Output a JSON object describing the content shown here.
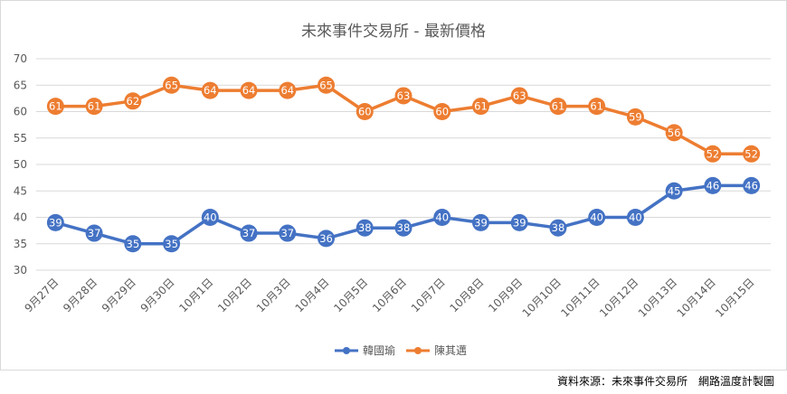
{
  "chart_data": {
    "type": "line",
    "title": "未來事件交易所 - 最新價格",
    "categories": [
      "9月27日",
      "9月28日",
      "9月29日",
      "9月30日",
      "10月1日",
      "10月2日",
      "10月3日",
      "10月4日",
      "10月5日",
      "10月6日",
      "10月7日",
      "10月8日",
      "10月9日",
      "10月10日",
      "10月11日",
      "10月12日",
      "10月13日",
      "10月14日",
      "10月15日"
    ],
    "series": [
      {
        "name": "韓國瑜",
        "color": "#4472c4",
        "values": [
          39,
          37,
          35,
          35,
          40,
          37,
          37,
          36,
          38,
          38,
          40,
          39,
          39,
          38,
          40,
          40,
          45,
          46,
          46
        ]
      },
      {
        "name": "陳其邁",
        "color": "#ed7d31",
        "values": [
          61,
          61,
          62,
          65,
          64,
          64,
          64,
          65,
          60,
          63,
          60,
          61,
          63,
          61,
          61,
          59,
          56,
          52,
          52
        ]
      }
    ],
    "ylim": [
      30,
      70
    ],
    "yticks": [
      30,
      35,
      40,
      45,
      50,
      55,
      60,
      65,
      70
    ],
    "grid": true,
    "legend": "bottom"
  },
  "source_note": "資料來源：未來事件交易所　網路溫度計製圖"
}
